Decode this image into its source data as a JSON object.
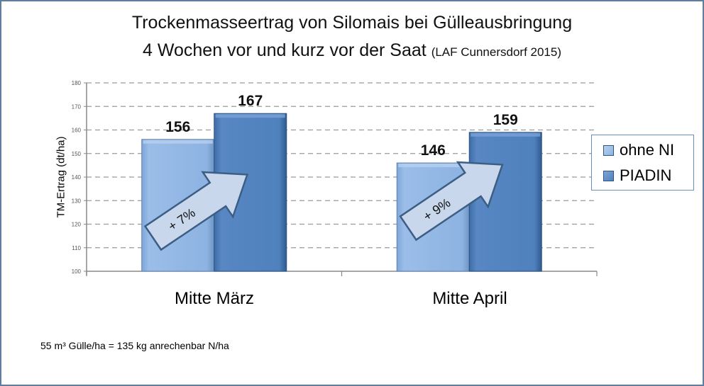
{
  "chart_data": {
    "type": "bar",
    "title": "Trockenmasseertrag von Silomais bei Gülleausbringung 4 Wochen vor und kurz vor der Saat",
    "title_line1": "Trockenmasseertrag von Silomais bei Gülleausbringung",
    "title_line2": "4 Wochen vor und kurz vor der Saat",
    "source": "(LAF Cunnersdorf 2015)",
    "categories": [
      "Mitte März",
      "Mitte April"
    ],
    "series": [
      {
        "name": "ohne NI",
        "values": [
          156,
          146
        ],
        "color": "#8db3e2"
      },
      {
        "name": "PIADIN",
        "values": [
          167,
          159
        ],
        "color": "#4f81bd"
      }
    ],
    "data_labels": [
      [
        "156",
        "146"
      ],
      [
        "167",
        "159"
      ]
    ],
    "annotations": [
      "+ 7%",
      "+ 9%"
    ],
    "xlabel": "",
    "ylabel": "TM-Ertrag (dt/ha)",
    "ylim": [
      100,
      180
    ],
    "yticks": [
      "100",
      "110",
      "120",
      "130",
      "140",
      "150",
      "160",
      "170",
      "180"
    ],
    "grid": true,
    "grid_style": "dashed",
    "legend_position": "right",
    "footnote": "55 m³ Gülle/ha = 135 kg anrechenbar N/ha"
  }
}
